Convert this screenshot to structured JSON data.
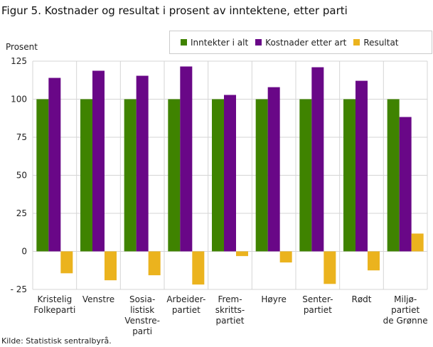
{
  "chart_data": {
    "type": "bar",
    "title": "Figur 5. Kostnader og resultat i prosent av inntektene, etter parti",
    "ylabel": "Prosent",
    "ylim": [
      -25,
      125
    ],
    "yticks": [
      125,
      100,
      75,
      50,
      25,
      0,
      -25
    ],
    "ytick_labels": [
      "125",
      "100",
      "75",
      "50",
      "25",
      "0",
      "- 25"
    ],
    "grid": true,
    "legend_position": "top-right",
    "categories": [
      [
        "Kristelig",
        "Folkeparti"
      ],
      [
        "Venstre"
      ],
      [
        "Sosia-",
        "listisk",
        "Venstre-",
        "parti"
      ],
      [
        "Arbeider-",
        "partiet"
      ],
      [
        "Frem-",
        "skritts-",
        "partiet"
      ],
      [
        "Høyre"
      ],
      [
        "Senter-",
        "partiet"
      ],
      [
        "Rødt"
      ],
      [
        "Miljø-",
        "partiet",
        "de Grønne"
      ]
    ],
    "series": [
      {
        "name": "Inntekter i alt",
        "color": "#3f8300",
        "values": [
          100,
          100,
          100,
          100,
          100,
          100,
          100,
          100,
          100
        ]
      },
      {
        "name": "Kostnader etter art",
        "color": "#690787",
        "values": [
          114,
          118.7,
          115.4,
          121.5,
          102.8,
          107.9,
          121,
          112.1,
          88.3
        ]
      },
      {
        "name": "Resultat",
        "color": "#ebb31e",
        "values": [
          -14.4,
          -19,
          -15.7,
          -21.8,
          -3.1,
          -7.3,
          -21.4,
          -12.5,
          11.7
        ]
      }
    ]
  },
  "source": "Kilde: Statistisk sentralbyrå."
}
